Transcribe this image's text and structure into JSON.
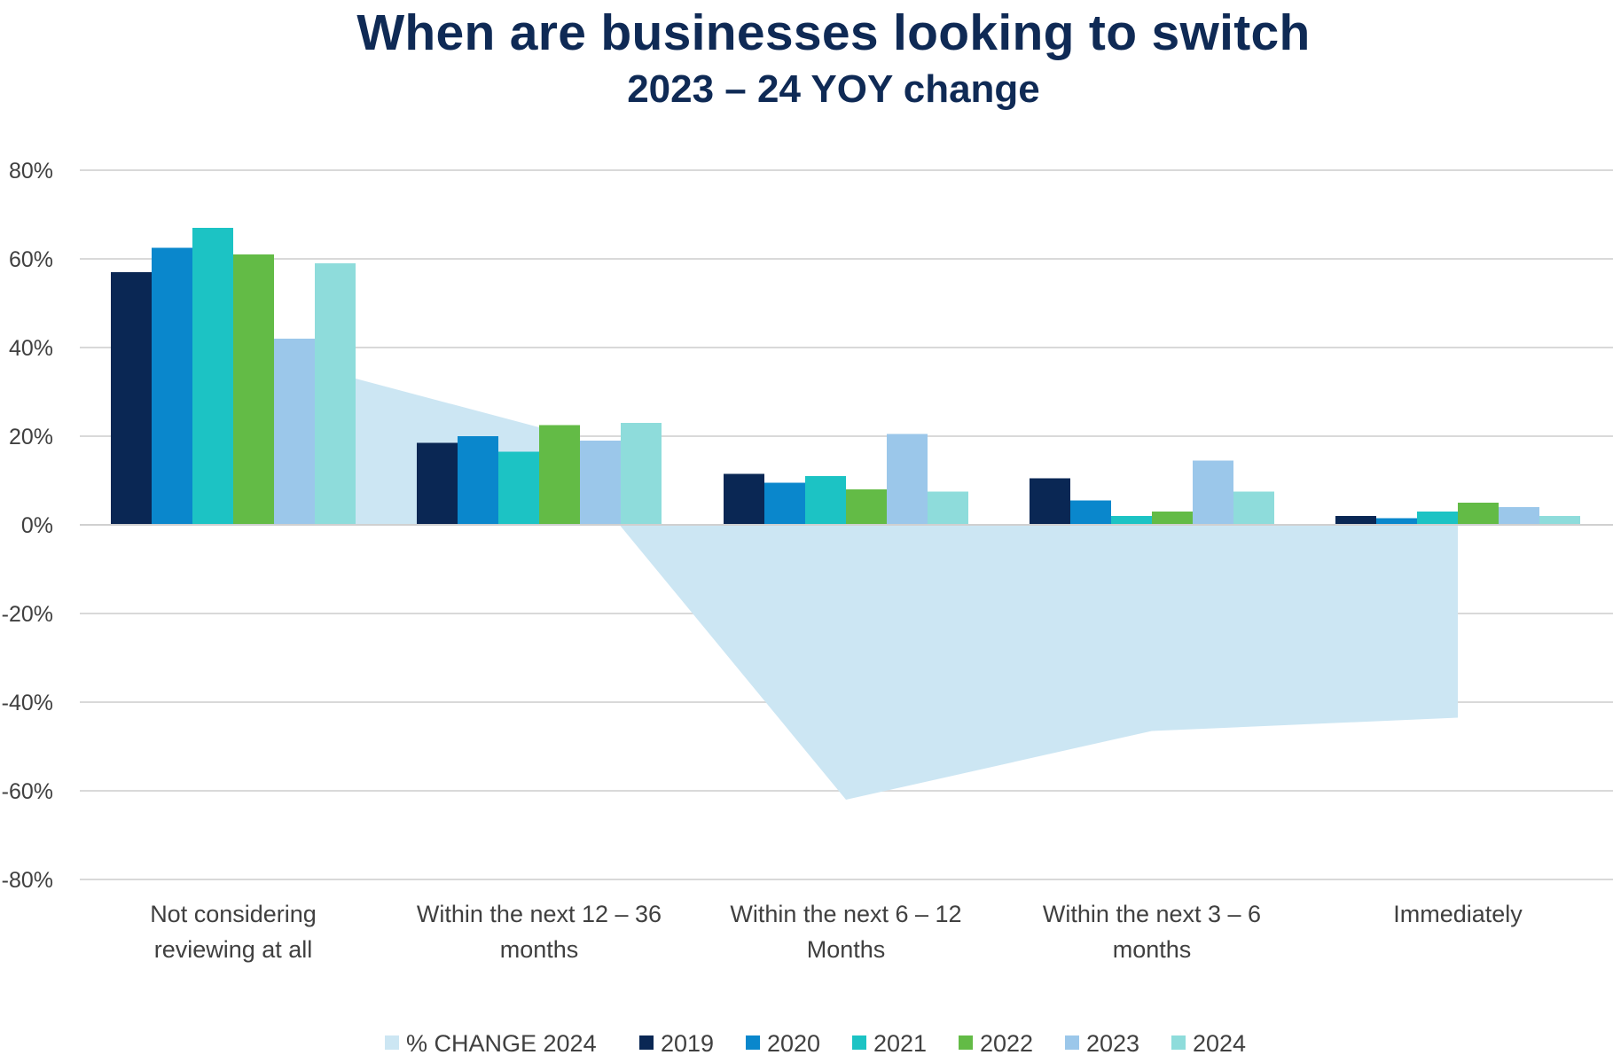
{
  "chart_data": {
    "type": "bar",
    "title": "When are businesses looking to switch",
    "subtitle": "2023 – 24 YOY change",
    "categories": [
      [
        "Not considering",
        "reviewing at all"
      ],
      [
        "Within the next 12 – 36",
        "months"
      ],
      [
        "Within the next 6 – 12",
        "Months"
      ],
      [
        "Within the next 3 – 6",
        "months"
      ],
      [
        "Immediately"
      ]
    ],
    "series": [
      {
        "name": "2019",
        "color": "#0a2754",
        "values": [
          57,
          18.5,
          11.5,
          10.5,
          2
        ]
      },
      {
        "name": "2020",
        "color": "#0a87cc",
        "values": [
          62.5,
          20,
          9.5,
          5.5,
          1.5
        ]
      },
      {
        "name": "2021",
        "color": "#1cc3c4",
        "values": [
          67,
          16.5,
          11,
          2,
          3
        ]
      },
      {
        "name": "2022",
        "color": "#63bb46",
        "values": [
          61,
          22.5,
          8,
          3,
          5
        ]
      },
      {
        "name": "2023",
        "color": "#9bc7ea",
        "values": [
          42,
          19,
          20.5,
          14.5,
          4
        ]
      },
      {
        "name": "2024",
        "color": "#8edcdb",
        "values": [
          59,
          23,
          7.5,
          7.5,
          2
        ]
      }
    ],
    "area_series": {
      "name": "% CHANGE 2024",
      "color": "#cce6f3",
      "values": [
        33,
        22,
        -62,
        -46.5,
        -43.5
      ]
    },
    "ylim": [
      -80,
      80
    ],
    "yticks": [
      "80%",
      "60%",
      "40%",
      "20%",
      "0%",
      "-20%",
      "-40%",
      "-60%",
      "-80%"
    ],
    "ytick_values": [
      80,
      60,
      40,
      20,
      0,
      -20,
      -40,
      -60,
      -80
    ],
    "legend_position": "bottom",
    "grid": true
  }
}
